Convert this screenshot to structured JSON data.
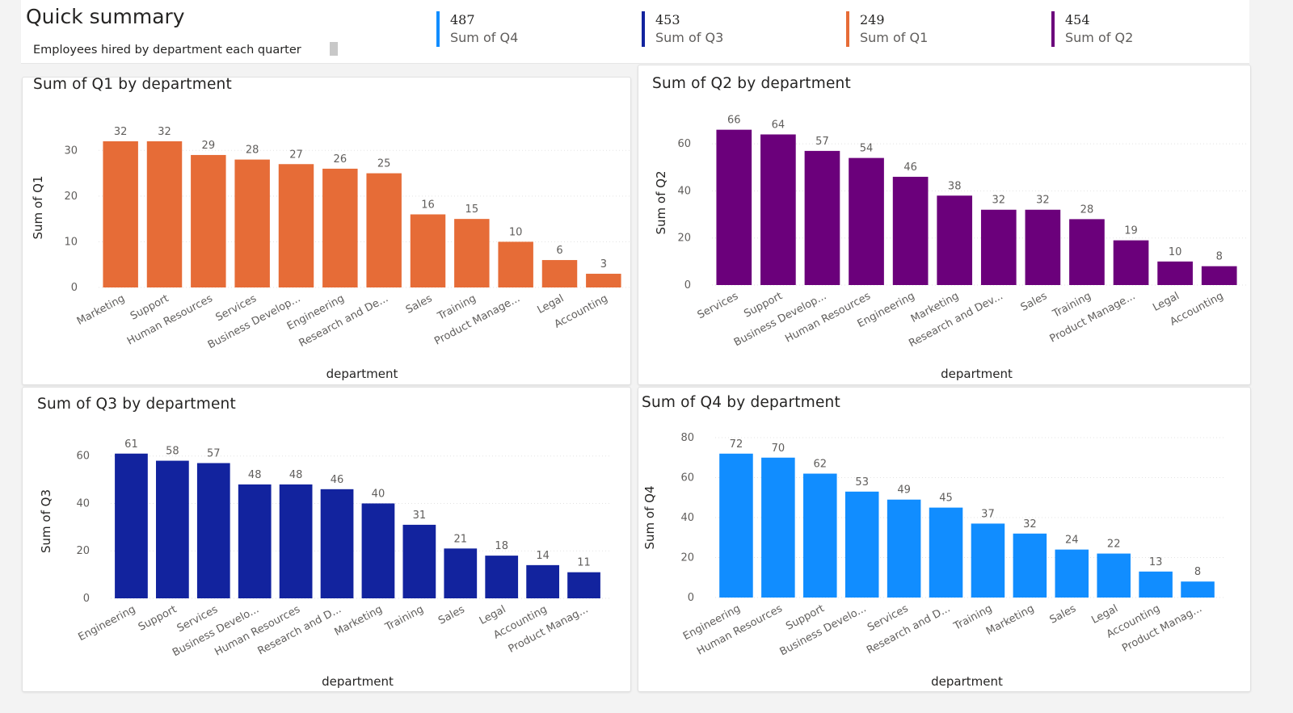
{
  "header": {
    "title": "Quick summary",
    "subtitle": "Employees hired by department each quarter"
  },
  "kpis": [
    {
      "value": "487",
      "label": "Sum of Q4",
      "color": "#118DFF"
    },
    {
      "value": "453",
      "label": "Sum of Q3",
      "color": "#12239E"
    },
    {
      "value": "249",
      "label": "Sum of Q1",
      "color": "#E66C37"
    },
    {
      "value": "454",
      "label": "Sum of Q2",
      "color": "#6B007B"
    }
  ],
  "chart_data": [
    {
      "type": "bar",
      "title": "Sum of Q1 by department",
      "xlabel": "department",
      "ylabel": "Sum of Q1",
      "color": "#E66C37",
      "ylim": [
        0,
        35
      ],
      "yticks": [
        0,
        10,
        20,
        30
      ],
      "categories": [
        "Marketing",
        "Support",
        "Human Resources",
        "Services",
        "Business Develop...",
        "Engineering",
        "Research and De...",
        "Sales",
        "Training",
        "Product Manage...",
        "Legal",
        "Accounting"
      ],
      "values": [
        32,
        32,
        29,
        28,
        27,
        26,
        25,
        16,
        15,
        10,
        6,
        3
      ],
      "grid": true,
      "data_labels": true
    },
    {
      "type": "bar",
      "title": "Sum of Q2 by department",
      "xlabel": "department",
      "ylabel": "Sum of Q2",
      "color": "#6B007B",
      "ylim": [
        0,
        70
      ],
      "yticks": [
        0,
        20,
        40,
        60
      ],
      "categories": [
        "Services",
        "Support",
        "Business Develop...",
        "Human Resources",
        "Engineering",
        "Marketing",
        "Research and Dev...",
        "Sales",
        "Training",
        "Product Manage...",
        "Legal",
        "Accounting"
      ],
      "values": [
        66,
        64,
        57,
        54,
        46,
        38,
        32,
        32,
        28,
        19,
        10,
        8
      ],
      "grid": true,
      "data_labels": true
    },
    {
      "type": "bar",
      "title": "Sum of Q3 by department",
      "xlabel": "department",
      "ylabel": "Sum of Q3",
      "color": "#12239E",
      "ylim": [
        0,
        65
      ],
      "yticks": [
        0,
        20,
        40,
        60
      ],
      "categories": [
        "Engineering",
        "Support",
        "Services",
        "Business Develo...",
        "Human Resources",
        "Research and D...",
        "Marketing",
        "Training",
        "Sales",
        "Legal",
        "Accounting",
        "Product Manag..."
      ],
      "values": [
        61,
        58,
        57,
        48,
        48,
        46,
        40,
        31,
        21,
        18,
        14,
        11
      ],
      "grid": true,
      "data_labels": true
    },
    {
      "type": "bar",
      "title": "Sum of Q4 by department",
      "xlabel": "department",
      "ylabel": "Sum of Q4",
      "color": "#118DFF",
      "ylim": [
        0,
        80
      ],
      "yticks": [
        0,
        20,
        40,
        60,
        80
      ],
      "categories": [
        "Engineering",
        "Human Resources",
        "Support",
        "Business Develo...",
        "Services",
        "Research and D...",
        "Training",
        "Marketing",
        "Sales",
        "Legal",
        "Accounting",
        "Product Manag..."
      ],
      "values": [
        72,
        70,
        62,
        53,
        49,
        45,
        37,
        32,
        24,
        22,
        13,
        8
      ],
      "grid": true,
      "data_labels": true
    }
  ]
}
